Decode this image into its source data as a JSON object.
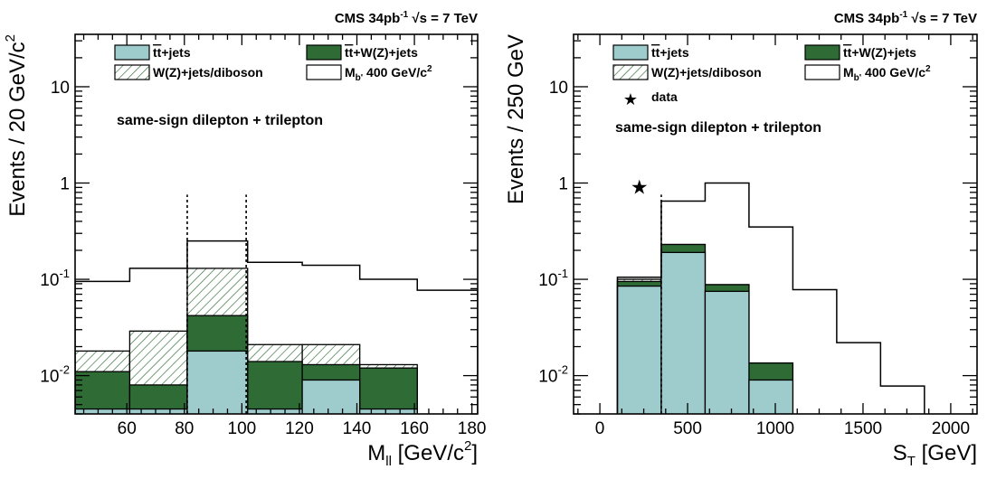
{
  "colors": {
    "ttbar_jets": "#9ecbcb",
    "ttbar_wz_jets": "#2e6b35",
    "hatch": "#2e6b35",
    "line": "#000000"
  },
  "chart_data": [
    {
      "type": "bar",
      "header": {
        "main": "CMS 34pb",
        "sup": "-1",
        "sqrt": "√s",
        "rest": " = 7 TeV"
      },
      "xlabel": {
        "main": "M",
        "sub": "ll",
        "rest": " [GeV/c",
        "sup": "2",
        "end": "]"
      },
      "ylabel": {
        "main": "Events / 20 GeV/c",
        "sup": "2"
      },
      "annotation": "same-sign dilepton + trilepton",
      "x_log": false,
      "y_log": true,
      "xlim": [
        42,
        182
      ],
      "ylim": [
        0.004,
        35
      ],
      "x_ticks": [
        60,
        80,
        100,
        120,
        140,
        160,
        180
      ],
      "y_ticks": [
        {
          "value": 0.01,
          "base": "10",
          "exp": "-2"
        },
        {
          "value": 0.1,
          "base": "10",
          "exp": "-1"
        },
        {
          "value": 1,
          "base": "1",
          "exp": ""
        },
        {
          "value": 10,
          "base": "10",
          "exp": ""
        }
      ],
      "bin_edges": [
        42,
        61,
        81,
        102,
        121,
        141,
        161,
        182
      ],
      "stack": {
        "ttbar_jets": [
          0.0045,
          0.0045,
          0.018,
          0.0045,
          0.009,
          0.0045,
          0
        ],
        "ttbar_wz_jets": [
          0.011,
          0.008,
          0.042,
          0.014,
          0.013,
          0.012,
          0
        ],
        "wz_diboson": [
          0.018,
          0.029,
          0.13,
          0.021,
          0.021,
          0.013,
          0
        ]
      },
      "signal_mbp400": [
        0.095,
        0.13,
        0.25,
        0.15,
        0.14,
        0.1,
        0.077
      ],
      "cut_lines": [
        81,
        101.5
      ],
      "data_points": [],
      "legend": {
        "ttbar_jets": {
          "main": "tt",
          "rest": "+jets"
        },
        "ttbar_wz_jets": {
          "main": "tt",
          "rest": "+W(Z)+jets"
        },
        "wz_diboson": {
          "main": "W(Z)+jets/diboson"
        },
        "signal": {
          "main": "M",
          "sub": "b'",
          "rest": " 400 GeV/c",
          "sup": "2"
        },
        "data": ""
      }
    },
    {
      "type": "bar",
      "header": {
        "main": "CMS 34pb",
        "sup": "-1",
        "sqrt": "√s",
        "rest": " = 7 TeV"
      },
      "xlabel": {
        "main": "S",
        "sub": "T",
        "rest": " [GeV]",
        "sup": "",
        "end": ""
      },
      "ylabel": {
        "main": "Events / 250 GeV",
        "sup": ""
      },
      "annotation": "same-sign dilepton + trilepton",
      "x_log": false,
      "y_log": true,
      "xlim": [
        -150,
        2150
      ],
      "ylim": [
        0.004,
        35
      ],
      "x_ticks": [
        0,
        500,
        1000,
        1500,
        2000
      ],
      "y_ticks": [
        {
          "value": 0.01,
          "base": "10",
          "exp": "-2"
        },
        {
          "value": 0.1,
          "base": "10",
          "exp": "-1"
        },
        {
          "value": 1,
          "base": "1",
          "exp": ""
        },
        {
          "value": 10,
          "base": "10",
          "exp": ""
        }
      ],
      "bin_edges": [
        100,
        350,
        600,
        850,
        1100,
        1350,
        1600,
        1850
      ],
      "stack": {
        "ttbar_jets": [
          0.085,
          0.19,
          0.075,
          0.009,
          0,
          0,
          0
        ],
        "ttbar_wz_jets": [
          0.095,
          0.23,
          0.088,
          0.0135,
          0,
          0,
          0
        ],
        "wz_diboson": [
          0.1,
          0.23,
          0.088,
          0.0135,
          0,
          0,
          0
        ]
      },
      "signal_mbp400": [
        0.105,
        0.65,
        1.0,
        0.35,
        0.078,
        0.022,
        0.0078
      ],
      "cut_lines": [
        350
      ],
      "data_points": [
        {
          "x": 225,
          "y": 0.9
        }
      ],
      "legend": {
        "ttbar_jets": {
          "main": "tt",
          "rest": "+jets"
        },
        "ttbar_wz_jets": {
          "main": "tt",
          "rest": "+W(Z)+jets"
        },
        "wz_diboson": {
          "main": "W(Z)+jets/diboson"
        },
        "signal": {
          "main": "M",
          "sub": "b'",
          "rest": " 400 GeV/c",
          "sup": "2"
        },
        "data": "data"
      }
    }
  ]
}
